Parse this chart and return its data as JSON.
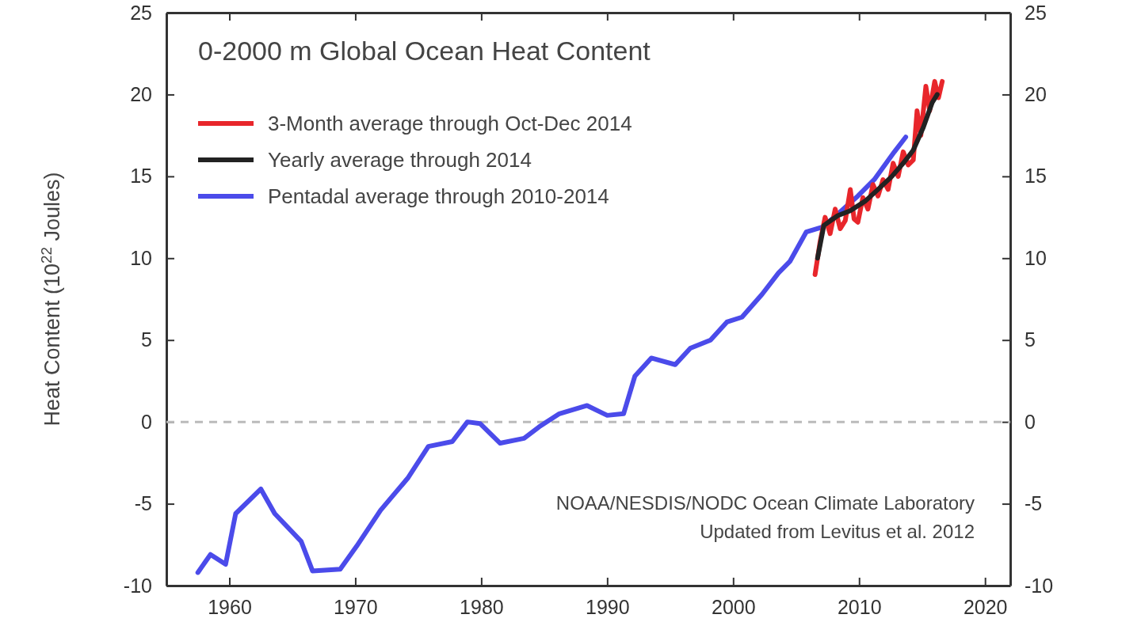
{
  "chart_data": {
    "type": "line",
    "title": "0-2000 m Global Ocean Heat Content",
    "ylabel": "Heat Content (10$^{22}$ Joules)",
    "xlim": [
      1955,
      2022
    ],
    "xticks": [
      1960,
      1970,
      1980,
      1990,
      2000,
      2010,
      2020
    ],
    "ylim": [
      -10,
      25
    ],
    "yticks": [
      -10,
      -5,
      0,
      5,
      10,
      15,
      20,
      25
    ],
    "y2lim": [
      -10,
      25
    ],
    "y2ticks": [
      -10,
      -5,
      0,
      5,
      10,
      15,
      20,
      25
    ],
    "grid": false,
    "legend": "top left",
    "line_style": "solid",
    "marker": "none",
    "ref_lines": [
      {
        "axis": "y",
        "value": 0,
        "color": "#bbbbbb",
        "line_style": "dashed"
      }
    ],
    "annotations": [
      "NOAA/NESDIS/NODC Ocean Climate Laboratory",
      "Updated from Levitus et al. 2012"
    ],
    "series": [
      {
        "name": "3-Month average through Oct-Dec 2014",
        "color": "#e8262b",
        "x": [
          2006.5,
          2006.9,
          2007.3,
          2007.7,
          2008.1,
          2008.5,
          2008.9,
          2009.3,
          2009.6,
          2009.9,
          2010.3,
          2010.7,
          2011.1,
          2011.5,
          2011.9,
          2012.3,
          2012.7,
          2013.1,
          2013.5,
          2013.9,
          2014.3,
          2014.6,
          2014.9,
          2015.3,
          2015.6,
          2016.0,
          2016.3,
          2016.6
        ],
        "values": [
          9.0,
          11.0,
          12.5,
          11.5,
          13.0,
          11.8,
          12.3,
          14.2,
          12.4,
          12.2,
          13.7,
          13.0,
          14.5,
          13.8,
          14.8,
          14.2,
          15.8,
          15.0,
          16.5,
          15.7,
          16.0,
          19.0,
          17.5,
          20.5,
          19.0,
          20.8,
          19.8,
          20.8
        ]
      },
      {
        "name": "Yearly average through 2014",
        "color": "#222222",
        "x": [
          2006.7,
          2007.2,
          2008.3,
          2009.3,
          2010.5,
          2011.5,
          2012.6,
          2013.5,
          2014.3,
          2015.1,
          2015.8,
          2016.2
        ],
        "values": [
          10.0,
          12.0,
          12.6,
          12.9,
          13.5,
          14.2,
          15.0,
          15.8,
          16.6,
          18.0,
          19.5,
          20.0
        ]
      },
      {
        "name": "Pentadal average through 2010-2014",
        "color": "#4b4bea",
        "x": [
          1957.5,
          1958.5,
          1959.7,
          1960.5,
          1962.5,
          1963.6,
          1965.7,
          1966.6,
          1968.8,
          1970.1,
          1972,
          1974.2,
          1975.8,
          1977.7,
          1978.9,
          1979.9,
          1981.5,
          1983.4,
          1984.6,
          1986.2,
          1988.4,
          1990,
          1991.3,
          1992.2,
          1993.5,
          1995.4,
          1996.6,
          1998.2,
          1999.5,
          2000.7,
          2002.3,
          2003.6,
          2004.5,
          2005.8,
          2007.1,
          2008.3,
          2009.9,
          2011.2,
          2012.8,
          2013.7
        ],
        "values": [
          -9.2,
          -8.1,
          -8.7,
          -5.6,
          -4.1,
          -5.6,
          -7.3,
          -9.1,
          -9.0,
          -7.6,
          -5.4,
          -3.4,
          -1.5,
          -1.2,
          0,
          -0.1,
          -1.3,
          -1.0,
          -0.3,
          0.5,
          1.0,
          0.4,
          0.5,
          2.8,
          3.9,
          3.5,
          4.5,
          5.0,
          6.1,
          6.4,
          7.8,
          9.1,
          9.8,
          11.6,
          11.9,
          12.7,
          13.8,
          14.8,
          16.5,
          17.4
        ]
      }
    ]
  }
}
